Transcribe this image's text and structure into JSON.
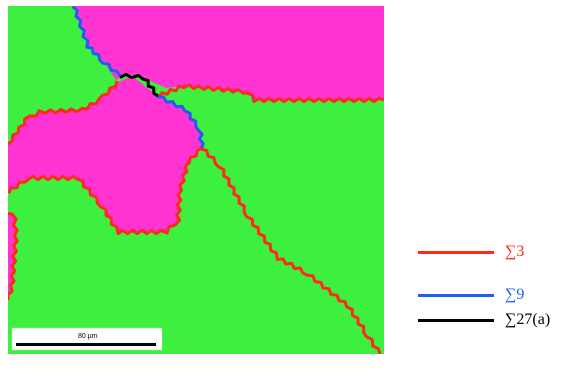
{
  "figure": {
    "scale_bar": {
      "label": "80 µm"
    },
    "colors": {
      "green_grain": "#3df03f",
      "magenta_grain": "#ff34d2",
      "sigma3": "#ff2a1a",
      "sigma9": "#1f5ef2",
      "sigma27a": "#000000"
    }
  },
  "legend": {
    "items": [
      {
        "label": "∑3",
        "color": "#ff2a1a"
      },
      {
        "label": "∑9",
        "color": "#1f5ef2"
      },
      {
        "label": "∑27(a)",
        "color": "#000000"
      }
    ]
  }
}
